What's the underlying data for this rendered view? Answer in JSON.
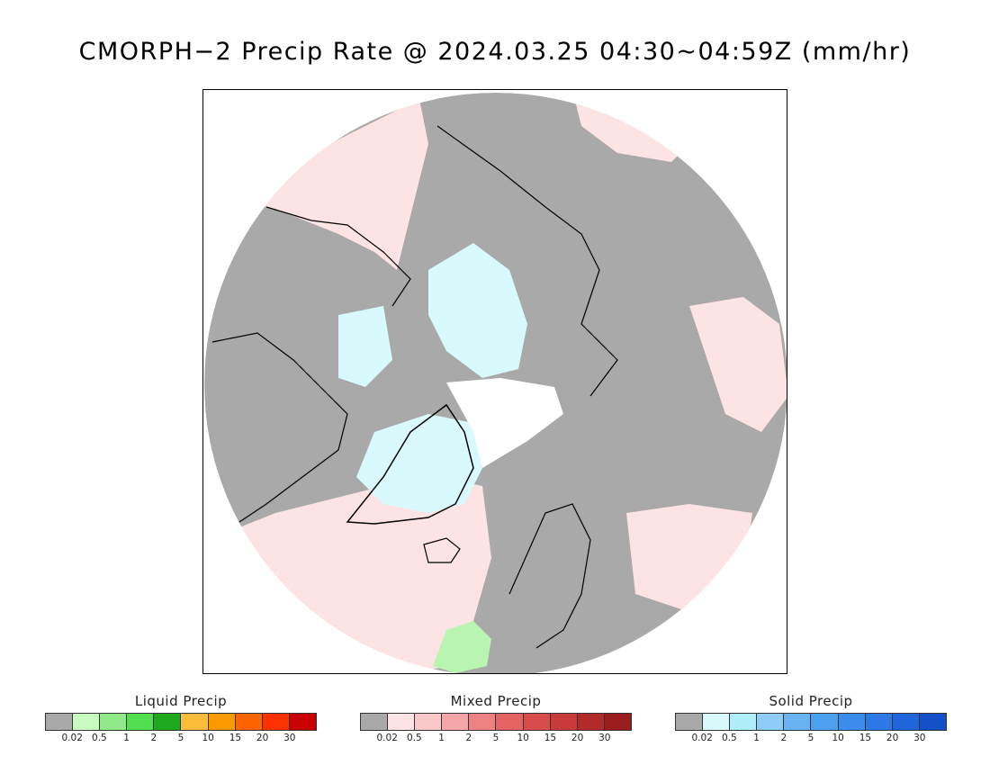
{
  "title": "CMORPH−2 Precip Rate @ 2024.03.25 04:30~04:59Z (mm/hr)",
  "map": {
    "projection": "north-polar-stereographic",
    "colors": {
      "no_precip": "#a9a9a9",
      "mixed_light": "#fde3e3",
      "solid_light": "#d9fafd",
      "liquid_light": "#b8f5b0",
      "coastline": "#000000",
      "outside": "#ffffff"
    }
  },
  "legends": [
    {
      "name": "liquid",
      "title": "Liquid Precip",
      "colors": [
        "#a9a9a9",
        "#c8fcc0",
        "#8fe986",
        "#4fdf4f",
        "#1ea81e",
        "#fbbc3c",
        "#fb9a00",
        "#fb6400",
        "#fb3200",
        "#c80000"
      ],
      "ticks": [
        "0.02",
        "0.5",
        "1",
        "2",
        "5",
        "10",
        "15",
        "20",
        "30"
      ]
    },
    {
      "name": "mixed",
      "title": "Mixed Precip",
      "colors": [
        "#a9a9a9",
        "#fde3e3",
        "#fac8c8",
        "#f5a6a6",
        "#ee8282",
        "#e46464",
        "#d84c4c",
        "#c93b3b",
        "#b32a2a",
        "#9b1c1c"
      ],
      "ticks": [
        "0.02",
        "0.5",
        "1",
        "2",
        "5",
        "10",
        "15",
        "20",
        "30"
      ]
    },
    {
      "name": "solid",
      "title": "Solid Precip",
      "colors": [
        "#a9a9a9",
        "#d9fafd",
        "#aeeef8",
        "#8ecdf7",
        "#6ab3f2",
        "#4d9ff0",
        "#3c8cee",
        "#2d78e6",
        "#1f64d8",
        "#1450c8"
      ],
      "ticks": [
        "0.02",
        "0.5",
        "1",
        "2",
        "5",
        "10",
        "15",
        "20",
        "30"
      ]
    }
  ]
}
